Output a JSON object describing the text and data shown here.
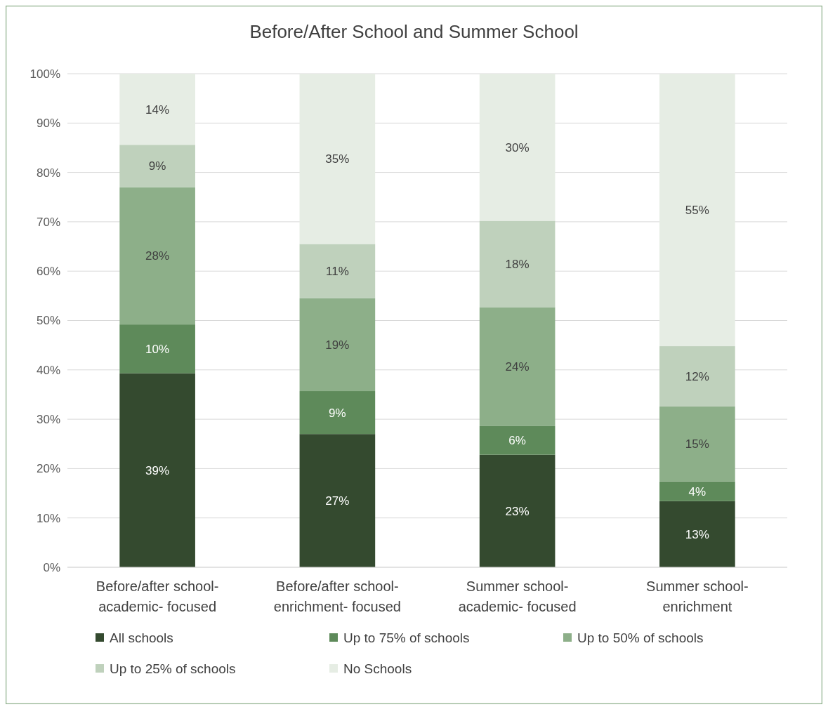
{
  "chart_data": {
    "type": "bar",
    "title": "Before/After School and Summer School",
    "stacked": true,
    "categories": [
      "Before/after school- academic- focused",
      "Before/after school- enrichment- focused",
      "Summer school- academic- focused",
      "Summer school- enrichment"
    ],
    "series": [
      {
        "name": "All schools",
        "color": "#344a2f",
        "values": [
          39.3,
          27,
          22.8,
          13.4
        ],
        "value_labels": [
          "39%",
          "27%",
          "23%",
          "13%"
        ]
      },
      {
        "name": "Up to 75% of schools",
        "color": "#5e8a5a",
        "values": [
          9.9,
          8.7,
          5.8,
          4
        ],
        "value_labels": [
          "10%",
          "9%",
          "6%",
          "4%"
        ]
      },
      {
        "name": "Up to 50% of schools",
        "color": "#8daf89",
        "values": [
          27.8,
          18.8,
          24.1,
          15.2
        ],
        "value_labels": [
          "28%",
          "19%",
          "24%",
          "15%"
        ]
      },
      {
        "name": "Up to 25% of schools",
        "color": "#bfd1bc",
        "values": [
          8.6,
          11,
          17.5,
          12.2
        ],
        "value_labels": [
          "9%",
          "11%",
          "18%",
          "12%"
        ]
      },
      {
        "name": "No Schools",
        "color": "#e6ede4",
        "values": [
          14.4,
          34.5,
          29.8,
          55.2
        ],
        "value_labels": [
          "14%",
          "35%",
          "30%",
          "55%"
        ]
      }
    ],
    "ylim": [
      0,
      100
    ],
    "yticks": [
      {
        "value": 0,
        "label": "0%"
      },
      {
        "value": 10,
        "label": "10%"
      },
      {
        "value": 20,
        "label": "20%"
      },
      {
        "value": 30,
        "label": "30%"
      },
      {
        "value": 40,
        "label": "40%"
      },
      {
        "value": 50,
        "label": "50%"
      },
      {
        "value": 60,
        "label": "60%"
      },
      {
        "value": 70,
        "label": "70%"
      },
      {
        "value": 80,
        "label": "80%"
      },
      {
        "value": 90,
        "label": "90%"
      },
      {
        "value": 100,
        "label": "100%"
      }
    ],
    "grid": "y",
    "legend": "bottom"
  }
}
